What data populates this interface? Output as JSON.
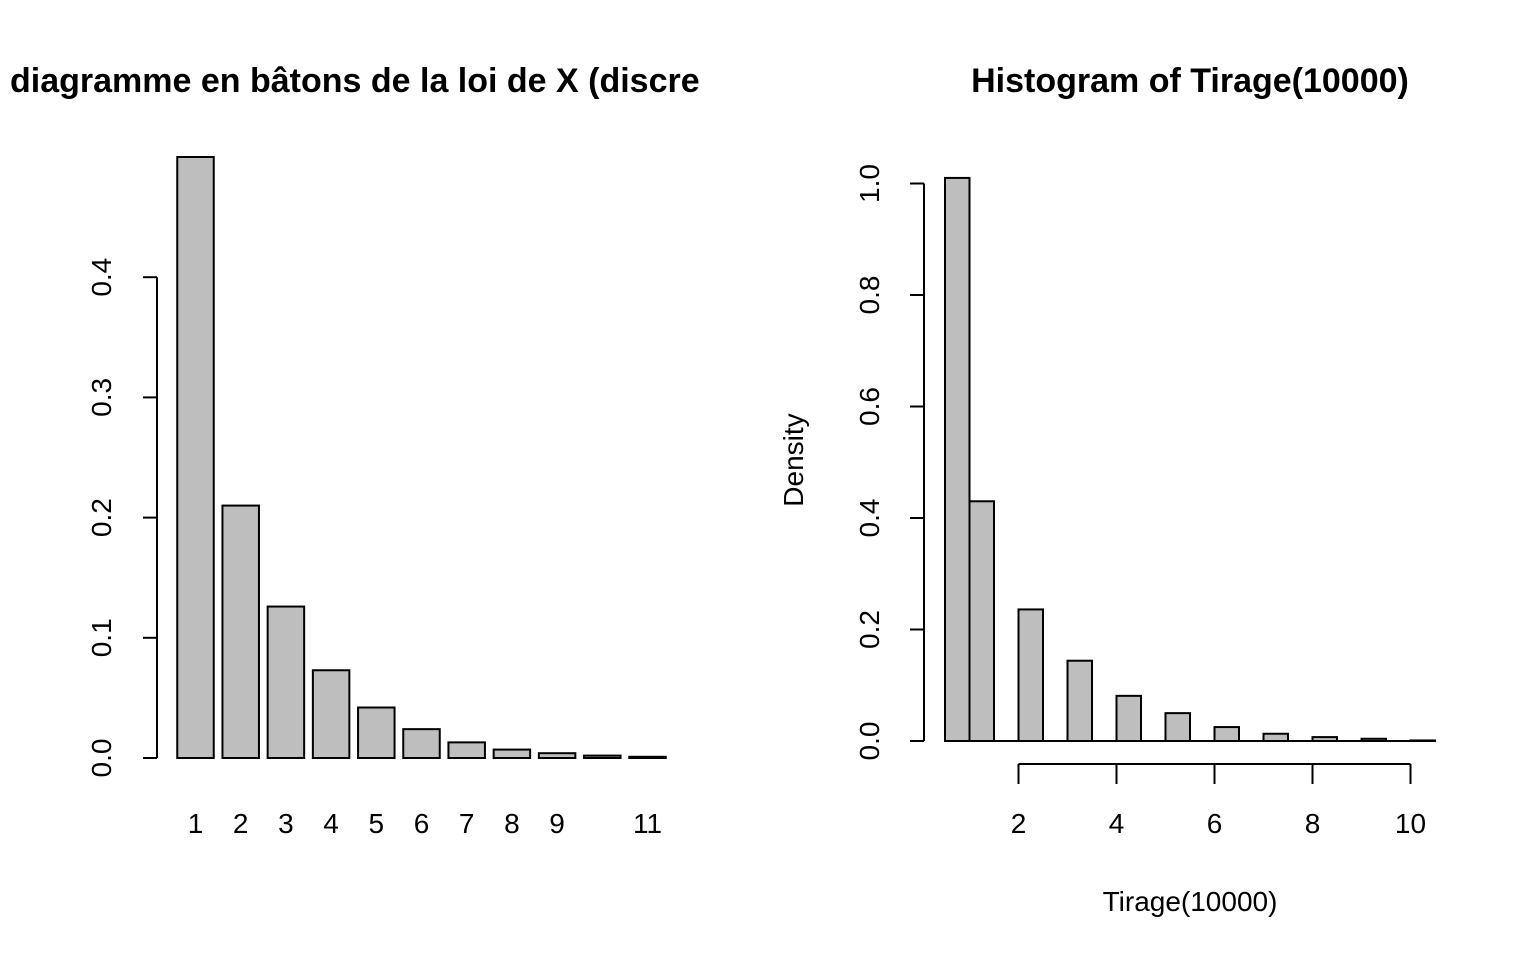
{
  "colors": {
    "bar_fill": "#bebebe",
    "stroke": "#000000",
    "background": "#ffffff"
  },
  "chart_data": [
    {
      "type": "bar",
      "title": "diagramme en bâtons de la loi de X (discre",
      "xlabel": "",
      "ylabel": "",
      "categories": [
        "1",
        "2",
        "3",
        "4",
        "5",
        "6",
        "7",
        "8",
        "9",
        "10",
        "11"
      ],
      "category_tick_labels": [
        "1",
        "2",
        "3",
        "4",
        "5",
        "6",
        "7",
        "8",
        "9",
        "",
        "11"
      ],
      "values": [
        0.5,
        0.21,
        0.126,
        0.073,
        0.042,
        0.024,
        0.013,
        0.007,
        0.004,
        0.002,
        0.001
      ],
      "ylim": [
        0,
        0.5
      ],
      "yticks": [
        0.0,
        0.1,
        0.2,
        0.3,
        0.4
      ],
      "ytick_labels": [
        "0.0",
        "0.1",
        "0.2",
        "0.3",
        "0.4"
      ],
      "grid": false
    },
    {
      "type": "bar",
      "subtype": "histogram",
      "title": "Histogram of Tirage(10000)",
      "xlabel": "Tirage(10000)",
      "ylabel": "Density",
      "bins": [
        {
          "x0": 0.5,
          "x1": 1.0,
          "density": 1.01
        },
        {
          "x0": 1.0,
          "x1": 1.5,
          "density": 0.43
        },
        {
          "x0": 1.5,
          "x1": 2.0,
          "density": 0.0
        },
        {
          "x0": 2.0,
          "x1": 2.5,
          "density": 0.236
        },
        {
          "x0": 2.5,
          "x1": 3.0,
          "density": 0.0
        },
        {
          "x0": 3.0,
          "x1": 3.5,
          "density": 0.144
        },
        {
          "x0": 3.5,
          "x1": 4.0,
          "density": 0.0
        },
        {
          "x0": 4.0,
          "x1": 4.5,
          "density": 0.081
        },
        {
          "x0": 4.5,
          "x1": 5.0,
          "density": 0.0
        },
        {
          "x0": 5.0,
          "x1": 5.5,
          "density": 0.05
        },
        {
          "x0": 5.5,
          "x1": 6.0,
          "density": 0.0
        },
        {
          "x0": 6.0,
          "x1": 6.5,
          "density": 0.025
        },
        {
          "x0": 6.5,
          "x1": 7.0,
          "density": 0.0
        },
        {
          "x0": 7.0,
          "x1": 7.5,
          "density": 0.013
        },
        {
          "x0": 7.5,
          "x1": 8.0,
          "density": 0.0
        },
        {
          "x0": 8.0,
          "x1": 8.5,
          "density": 0.007
        },
        {
          "x0": 8.5,
          "x1": 9.0,
          "density": 0.0
        },
        {
          "x0": 9.0,
          "x1": 9.5,
          "density": 0.004
        },
        {
          "x0": 9.5,
          "x1": 10.0,
          "density": 0.0
        },
        {
          "x0": 10.0,
          "x1": 10.5,
          "density": 0.001
        }
      ],
      "xlim": [
        0.5,
        10.5
      ],
      "ylim": [
        0,
        1.0
      ],
      "xticks": [
        2,
        4,
        6,
        8,
        10
      ],
      "xtick_labels": [
        "2",
        "4",
        "6",
        "8",
        "10"
      ],
      "yticks": [
        0.0,
        0.2,
        0.4,
        0.6,
        0.8,
        1.0
      ],
      "ytick_labels": [
        "0.0",
        "0.2",
        "0.4",
        "0.6",
        "0.8",
        "1.0"
      ],
      "grid": false
    }
  ]
}
